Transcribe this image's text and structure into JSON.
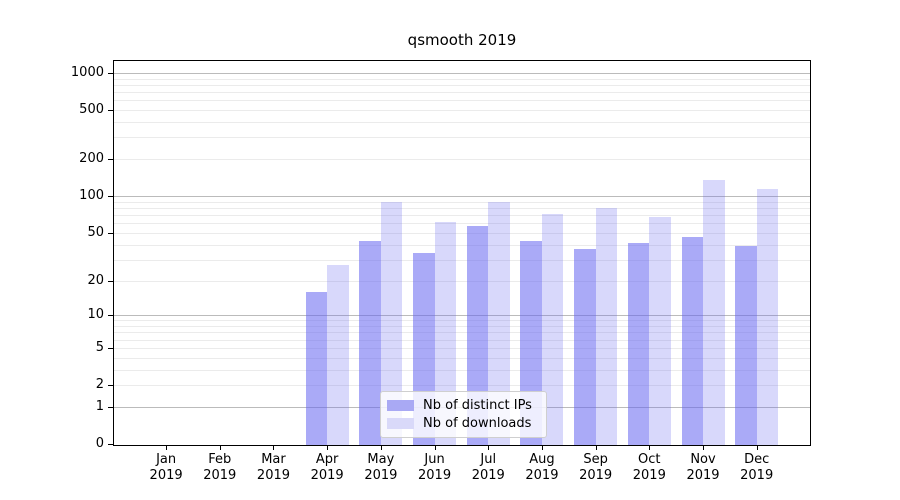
{
  "title": "qsmooth 2019",
  "legend": {
    "items": [
      {
        "label": "Nb of distinct IPs",
        "color": "#a9a9f4"
      },
      {
        "label": "Nb of downloads",
        "color": "#d9d9f9"
      }
    ]
  },
  "y_axis": {
    "tick_labels": [
      "0",
      "1",
      "2",
      "5",
      "10",
      "20",
      "50",
      "100",
      "200",
      "500",
      "1000"
    ]
  },
  "x_axis": {
    "months": [
      "Jan",
      "Feb",
      "Mar",
      "Apr",
      "May",
      "Jun",
      "Jul",
      "Aug",
      "Sep",
      "Oct",
      "Nov",
      "Dec"
    ],
    "year": "2019"
  },
  "chart_data": {
    "type": "bar",
    "title": "qsmooth 2019",
    "categories": [
      "Jan 2019",
      "Feb 2019",
      "Mar 2019",
      "Apr 2019",
      "May 2019",
      "Jun 2019",
      "Jul 2019",
      "Aug 2019",
      "Sep 2019",
      "Oct 2019",
      "Nov 2019",
      "Dec 2019"
    ],
    "series": [
      {
        "name": "Nb of distinct IPs",
        "color": "#a9a9f4",
        "values": [
          0,
          0,
          0,
          16,
          43,
          34,
          57,
          43,
          37,
          41,
          46,
          39
        ]
      },
      {
        "name": "Nb of downloads",
        "color": "#d9d9f9",
        "values": [
          0,
          0,
          0,
          27,
          90,
          62,
          90,
          71,
          80,
          67,
          136,
          114
        ]
      }
    ],
    "xlabel": "",
    "ylabel": "",
    "yscale": "log1p",
    "y_ticks": [
      0,
      1,
      2,
      5,
      10,
      20,
      50,
      100,
      200,
      500,
      1000
    ],
    "ylim": [
      0,
      1270
    ],
    "grid": "on",
    "legend_position": "lower center"
  }
}
